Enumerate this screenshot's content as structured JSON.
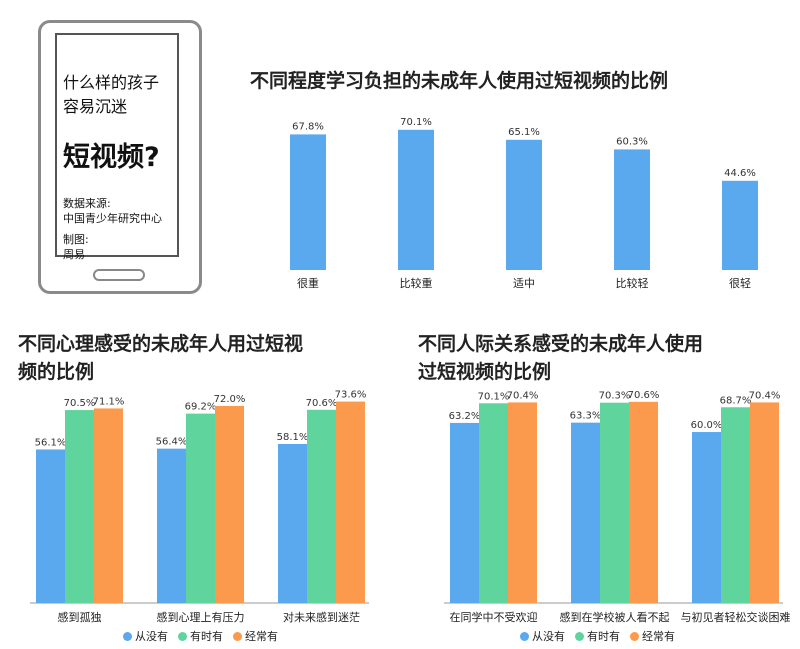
{
  "phone": {
    "question_line1": "什么样的孩子",
    "question_line2": "容易沉迷",
    "headline": "短视频?",
    "source_label": "数据来源:",
    "source_value": "中国青少年研究中心",
    "maker_label": "制图:",
    "maker_value": "周易"
  },
  "colors": {
    "never": "#5aa8ee",
    "sometimes": "#5fd49d",
    "often": "#fb9a4d"
  },
  "chart_data": [
    {
      "type": "bar",
      "title": "不同程度学习负担的未成年人使用过短视频的比例",
      "categories": [
        "很重",
        "比较重",
        "适中",
        "比较轻",
        "很轻"
      ],
      "values": [
        67.8,
        70.1,
        65.1,
        60.3,
        44.6
      ],
      "value_labels": [
        "67.8%",
        "70.1%",
        "65.1%",
        "60.3%",
        "44.6%"
      ],
      "ylim": [
        0,
        80
      ],
      "grid": false,
      "color": "#5aa8ee"
    },
    {
      "type": "bar",
      "title_line1": "不同心理感受的未成年人用过短视",
      "title_line2": "频的比例",
      "categories": [
        "感到孤独",
        "感到心理上有压力",
        "对未来感到迷茫"
      ],
      "series": [
        {
          "name": "从没有",
          "values": [
            56.1,
            56.4,
            58.1
          ],
          "labels": [
            "56.1%",
            "56.4%",
            "58.1%"
          ]
        },
        {
          "name": "有时有",
          "values": [
            70.5,
            69.2,
            70.6
          ],
          "labels": [
            "70.5%",
            "69.2%",
            "70.6%"
          ]
        },
        {
          "name": "经常有",
          "values": [
            71.1,
            72.0,
            73.6
          ],
          "labels": [
            "71.1%",
            "72.0%",
            "73.6%"
          ]
        }
      ],
      "ylim": [
        0,
        76
      ],
      "grid": false,
      "legend_position": "bottom"
    },
    {
      "type": "bar",
      "title_line1": "不同人际关系感受的未成年人使用",
      "title_line2": "过短视频的比例",
      "categories": [
        "在同学中不受欢迎",
        "感到在学校被人看不起",
        "与初见者轻松交谈困难"
      ],
      "series": [
        {
          "name": "从没有",
          "values": [
            63.2,
            63.3,
            60.0
          ],
          "labels": [
            "63.2%",
            "63.3%",
            "60.0%"
          ]
        },
        {
          "name": "有时有",
          "values": [
            70.1,
            70.3,
            68.7
          ],
          "labels": [
            "70.1%",
            "70.3%",
            "68.7%"
          ]
        },
        {
          "name": "经常有",
          "values": [
            70.4,
            70.6,
            70.4
          ],
          "labels": [
            "70.4%",
            "70.6%",
            "70.4%"
          ]
        }
      ],
      "ylim": [
        0,
        73
      ],
      "grid": false,
      "legend_position": "bottom"
    }
  ]
}
